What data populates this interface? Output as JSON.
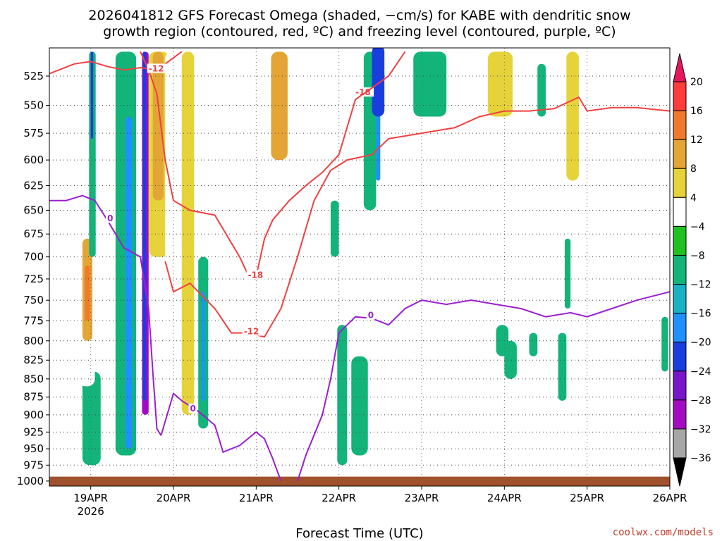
{
  "title_line1": "2026041812 GFS Forecast Omega (shaded, −cm/s) for KABE with dendritic snow",
  "title_line2": "growth region (contoured, red, ºC) and freezing level (contoured, purple, ºC)",
  "credit": "coolwx.com/models",
  "chart_data": {
    "type": "heatmap",
    "xlabel": "Forecast Time (UTC)",
    "ylabel": "",
    "x_range_days": [
      "18APR 12Z",
      "26APR 00Z"
    ],
    "x_ticks": [
      {
        "day": 19,
        "label": "19APR",
        "sublabel": "2026"
      },
      {
        "day": 20,
        "label": "20APR",
        "sublabel": ""
      },
      {
        "day": 21,
        "label": "21APR",
        "sublabel": ""
      },
      {
        "day": 22,
        "label": "22APR",
        "sublabel": ""
      },
      {
        "day": 23,
        "label": "23APR",
        "sublabel": ""
      },
      {
        "day": 24,
        "label": "24APR",
        "sublabel": ""
      },
      {
        "day": 25,
        "label": "25APR",
        "sublabel": ""
      },
      {
        "day": 26,
        "label": "26APR",
        "sublabel": ""
      }
    ],
    "y_ticks": [
      525,
      550,
      575,
      600,
      625,
      650,
      675,
      700,
      725,
      750,
      775,
      800,
      825,
      850,
      875,
      900,
      925,
      950,
      975,
      1000
    ],
    "y_scale": "log-pressure",
    "y_range_hpa": [
      502,
      1008
    ],
    "grid": true,
    "colorbar": {
      "labels": [
        "20",
        "16",
        "12",
        "8",
        "4",
        "−4",
        "−8",
        "−12",
        "−16",
        "−20",
        "−24",
        "−28",
        "−32",
        "−36"
      ],
      "colors": [
        "#e8175d",
        "#ff3b3b",
        "#f07a2c",
        "#e3a535",
        "#e6d33a",
        "#ffffff",
        "#1fc21f",
        "#12b47a",
        "#17b3c2",
        "#1e90ff",
        "#1a3de0",
        "#7a16c9",
        "#a30bc2",
        "#a6a6a6",
        "#000000"
      ]
    },
    "omega_blobs": [
      {
        "t": [
          18.96,
          19.04,
          19.0,
          19.1
        ],
        "p": [
          880,
          975
        ],
        "level": "-12"
      },
      {
        "t": [
          18.9,
          19.12
        ],
        "p": [
          840,
          975
        ],
        "level": "-8"
      },
      {
        "t": [
          18.85,
          19.05
        ],
        "p": [
          640,
          860
        ],
        "level": "4"
      },
      {
        "t": [
          18.9,
          19.02
        ],
        "p": [
          680,
          800
        ],
        "level": "12"
      },
      {
        "t": [
          18.93,
          18.99
        ],
        "p": [
          710,
          775
        ],
        "level": "16"
      },
      {
        "t": [
          18.98,
          19.06
        ],
        "p": [
          505,
          700
        ],
        "level": "-8"
      },
      {
        "t": [
          19.0,
          19.03
        ],
        "p": [
          505,
          580
        ],
        "level": "-20"
      },
      {
        "t": [
          19.3,
          19.55
        ],
        "p": [
          505,
          960
        ],
        "level": "-8"
      },
      {
        "t": [
          19.42,
          19.5
        ],
        "p": [
          560,
          950
        ],
        "level": "-16"
      },
      {
        "t": [
          19.55,
          19.72
        ],
        "p": [
          505,
          975
        ],
        "level": "4"
      },
      {
        "t": [
          19.62,
          19.7
        ],
        "p": [
          505,
          900
        ],
        "level": "-28"
      },
      {
        "t": [
          19.63,
          19.67
        ],
        "p": [
          505,
          880
        ],
        "level": "-20"
      },
      {
        "t": [
          19.7,
          19.95
        ],
        "p": [
          505,
          700
        ],
        "level": "8"
      },
      {
        "t": [
          19.75,
          19.88
        ],
        "p": [
          505,
          640
        ],
        "level": "12"
      },
      {
        "t": [
          19.9,
          20.3
        ],
        "p": [
          505,
          980
        ],
        "level": "4"
      },
      {
        "t": [
          20.1,
          20.25
        ],
        "p": [
          505,
          900
        ],
        "level": "8"
      },
      {
        "t": [
          20.3,
          20.42
        ],
        "p": [
          700,
          920
        ],
        "level": "-8"
      },
      {
        "t": [
          20.34,
          20.38
        ],
        "p": [
          740,
          880
        ],
        "level": "-16"
      },
      {
        "t": [
          20.45,
          20.6
        ],
        "p": [
          505,
          720
        ],
        "level": "4"
      },
      {
        "t": [
          21.1,
          21.45
        ],
        "p": [
          505,
          700
        ],
        "level": "4"
      },
      {
        "t": [
          21.18,
          21.38
        ],
        "p": [
          505,
          600
        ],
        "level": "12"
      },
      {
        "t": [
          21.5,
          21.9
        ],
        "p": [
          505,
          640
        ],
        "level": "4"
      },
      {
        "t": [
          21.9,
          22.0
        ],
        "p": [
          640,
          700
        ],
        "level": "-8"
      },
      {
        "t": [
          22.0,
          22.3
        ],
        "p": [
          505,
          700
        ],
        "level": "4"
      },
      {
        "t": [
          22.3,
          22.45
        ],
        "p": [
          505,
          650
        ],
        "level": "-8"
      },
      {
        "t": [
          22.45,
          22.5
        ],
        "p": [
          505,
          620
        ],
        "level": "-16"
      },
      {
        "t": [
          21.98,
          22.1
        ],
        "p": [
          780,
          975
        ],
        "level": "-8"
      },
      {
        "t": [
          22.15,
          22.35
        ],
        "p": [
          820,
          960
        ],
        "level": "-8"
      },
      {
        "t": [
          22.4,
          22.55
        ],
        "p": [
          500,
          560
        ],
        "level": "-20"
      },
      {
        "t": [
          22.9,
          23.3
        ],
        "p": [
          505,
          560
        ],
        "level": "-8"
      },
      {
        "t": [
          23.5,
          23.8
        ],
        "p": [
          505,
          650
        ],
        "level": "4"
      },
      {
        "t": [
          23.8,
          24.1
        ],
        "p": [
          505,
          560
        ],
        "level": "8"
      },
      {
        "t": [
          24.4,
          24.5
        ],
        "p": [
          515,
          560
        ],
        "level": "-8"
      },
      {
        "t": [
          24.75,
          24.9
        ],
        "p": [
          505,
          620
        ],
        "level": "8"
      },
      {
        "t": [
          25.35,
          25.45
        ],
        "p": [
          610,
          660
        ],
        "level": "4"
      },
      {
        "t": [
          24.73,
          24.8
        ],
        "p": [
          680,
          760
        ],
        "level": "-8"
      },
      {
        "t": [
          23.9,
          24.05
        ],
        "p": [
          780,
          820
        ],
        "level": "-8"
      },
      {
        "t": [
          24.3,
          24.4
        ],
        "p": [
          790,
          820
        ],
        "level": "-8"
      },
      {
        "t": [
          24.0,
          24.15
        ],
        "p": [
          800,
          850
        ],
        "level": "-8"
      },
      {
        "t": [
          24.65,
          24.75
        ],
        "p": [
          790,
          880
        ],
        "level": "-8"
      },
      {
        "t": [
          25.9,
          25.98
        ],
        "p": [
          770,
          840
        ],
        "level": "-8"
      },
      {
        "t": [
          23.65,
          23.72
        ],
        "p": [
          910,
          945
        ],
        "level": "4"
      },
      {
        "t": [
          22.85,
          22.95
        ],
        "p": [
          900,
          970
        ],
        "level": "4"
      },
      {
        "t": [
          21.6,
          21.8
        ],
        "p": [
          880,
          950
        ],
        "level": "4"
      }
    ],
    "dgz_contours": [
      {
        "label": "-18",
        "label_at": [
          22.2,
          540
        ],
        "points": [
          [
            18.5,
            523
          ],
          [
            18.8,
            515
          ],
          [
            19.0,
            513
          ],
          [
            19.2,
            517
          ],
          [
            19.4,
            520
          ],
          [
            19.6,
            518
          ],
          [
            19.8,
            520
          ],
          [
            20.0,
            510
          ],
          [
            20.1,
            505
          ]
        ]
      },
      {
        "label": "-12",
        "label_at": [
          19.7,
          520
        ],
        "points": [
          [
            19.6,
            505
          ],
          [
            19.7,
            520
          ],
          [
            19.8,
            540
          ],
          [
            19.9,
            600
          ],
          [
            20.0,
            640
          ],
          [
            20.2,
            650
          ],
          [
            20.5,
            655
          ],
          [
            20.8,
            700
          ],
          [
            20.9,
            720
          ],
          [
            21.0,
            725
          ]
        ]
      },
      {
        "label": "-18",
        "label_at": [
          20.9,
          722
        ],
        "points": [
          [
            21.0,
            722
          ],
          [
            21.1,
            680
          ],
          [
            21.2,
            660
          ],
          [
            21.4,
            640
          ],
          [
            21.6,
            625
          ],
          [
            21.8,
            612
          ],
          [
            22.0,
            595
          ],
          [
            22.2,
            545
          ],
          [
            22.4,
            535
          ],
          [
            22.6,
            525
          ],
          [
            22.8,
            505
          ]
        ]
      },
      {
        "label": "-12",
        "label_at": [
          20.85,
          790
        ],
        "points": [
          [
            19.9,
            705
          ],
          [
            20.0,
            740
          ],
          [
            20.2,
            730
          ],
          [
            20.5,
            760
          ],
          [
            20.7,
            790
          ],
          [
            20.9,
            790
          ],
          [
            21.1,
            795
          ],
          [
            21.3,
            760
          ],
          [
            21.5,
            700
          ],
          [
            21.7,
            640
          ],
          [
            21.9,
            610
          ],
          [
            22.1,
            600
          ],
          [
            22.4,
            595
          ],
          [
            22.6,
            580
          ],
          [
            23.0,
            575
          ],
          [
            23.4,
            570
          ],
          [
            23.7,
            560
          ],
          [
            24.0,
            555
          ],
          [
            24.3,
            555
          ],
          [
            24.6,
            553
          ],
          [
            24.9,
            543
          ],
          [
            25.0,
            555
          ],
          [
            25.3,
            552
          ],
          [
            25.6,
            552
          ],
          [
            26.0,
            555
          ]
        ]
      }
    ],
    "freezing_contours": [
      {
        "label": "0",
        "label_at": [
          19.2,
          660
        ],
        "points": [
          [
            18.5,
            640
          ],
          [
            18.7,
            640
          ],
          [
            18.9,
            635
          ],
          [
            19.05,
            640
          ],
          [
            19.2,
            660
          ],
          [
            19.4,
            690
          ],
          [
            19.6,
            700
          ],
          [
            19.7,
            760
          ],
          [
            19.75,
            840
          ],
          [
            19.8,
            920
          ],
          [
            19.85,
            930
          ]
        ]
      },
      {
        "label": "0",
        "label_at": [
          20.2,
          893
        ],
        "points": [
          [
            19.85,
            930
          ],
          [
            20.0,
            870
          ],
          [
            20.1,
            880
          ],
          [
            20.3,
            895
          ],
          [
            20.5,
            915
          ],
          [
            20.6,
            955
          ],
          [
            20.8,
            945
          ],
          [
            21.0,
            925
          ],
          [
            21.1,
            935
          ],
          [
            21.2,
            965
          ],
          [
            21.3,
            1000
          ]
        ]
      },
      {
        "label": "0",
        "label_at": [
          22.35,
          770
        ],
        "points": [
          [
            21.5,
            1000
          ],
          [
            21.6,
            960
          ],
          [
            21.8,
            900
          ],
          [
            21.9,
            850
          ],
          [
            22.0,
            790
          ],
          [
            22.1,
            780
          ],
          [
            22.2,
            770
          ],
          [
            22.4,
            772
          ],
          [
            22.6,
            780
          ],
          [
            22.8,
            760
          ],
          [
            23.0,
            750
          ],
          [
            23.3,
            755
          ],
          [
            23.6,
            750
          ],
          [
            23.9,
            755
          ],
          [
            24.2,
            760
          ],
          [
            24.5,
            770
          ],
          [
            24.8,
            765
          ],
          [
            25.0,
            770
          ],
          [
            25.3,
            760
          ],
          [
            25.6,
            750
          ],
          [
            25.8,
            745
          ],
          [
            26.0,
            740
          ]
        ]
      }
    ],
    "terrain_top_hpa": 993
  }
}
